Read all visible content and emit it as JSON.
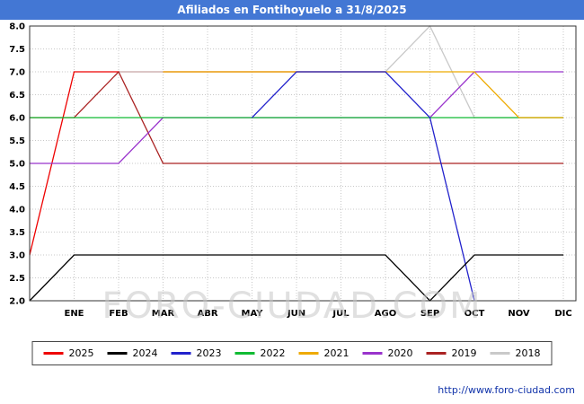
{
  "title": "Afiliados en Fontihoyuelo a 31/8/2025",
  "watermark": "FORO-CIUDAD.COM",
  "footer_url": "http://www.foro-ciudad.com",
  "titlebar_color": "#4377d4",
  "chart_data": {
    "type": "line",
    "title": "Afiliados en Fontihoyuelo a 31/8/2025",
    "x_labels": [
      "ENE",
      "FEB",
      "MAR",
      "ABR",
      "MAY",
      "JUN",
      "JUL",
      "AGO",
      "SEP",
      "OCT",
      "NOV",
      "DIC"
    ],
    "y_ticks": [
      "8.0",
      "7.5",
      "7.0",
      "6.5",
      "6.0",
      "5.5",
      "5.0",
      "4.5",
      "4.0",
      "3.5",
      "3.0",
      "2.5",
      "2.0"
    ],
    "ylim": [
      2.0,
      8.0
    ],
    "grid": true,
    "legend_position": "bottom",
    "x_positions_note": "first value of each series is plotted on the left axis, then one value per month ENE-DIC",
    "series": [
      {
        "year": "2025",
        "color": "#ee0000",
        "values": [
          3,
          7,
          7,
          7,
          7,
          7,
          7,
          7,
          7,
          null,
          null,
          null,
          null
        ]
      },
      {
        "year": "2024",
        "color": "#000000",
        "values": [
          2,
          3,
          3,
          3,
          3,
          3,
          3,
          3,
          3,
          2,
          3,
          3,
          3
        ]
      },
      {
        "year": "2023",
        "color": "#2222cc",
        "values": [
          null,
          null,
          null,
          null,
          null,
          6,
          7,
          7,
          7,
          6,
          2,
          null,
          null
        ]
      },
      {
        "year": "2022",
        "color": "#11bb33",
        "values": [
          6,
          6,
          6,
          6,
          6,
          6,
          6,
          6,
          6,
          6,
          6,
          6,
          6
        ]
      },
      {
        "year": "2021",
        "color": "#eeaa00",
        "values": [
          null,
          null,
          null,
          7,
          7,
          7,
          7,
          7,
          7,
          7,
          7,
          6,
          6
        ]
      },
      {
        "year": "2020",
        "color": "#9933cc",
        "values": [
          5,
          5,
          5,
          6,
          6,
          6,
          6,
          6,
          6,
          6,
          7,
          7,
          7
        ]
      },
      {
        "year": "2019",
        "color": "#aa2222",
        "values": [
          6,
          6,
          7,
          5,
          5,
          5,
          5,
          5,
          5,
          5,
          5,
          5,
          5
        ]
      },
      {
        "year": "2018",
        "color": "#c9c9c9",
        "values": [
          null,
          null,
          7,
          7,
          7,
          7,
          7,
          7,
          7,
          8,
          6,
          6,
          6
        ]
      }
    ],
    "draw_order": [
      "2025",
      "2018",
      "2019",
      "2020",
      "2022",
      "2021",
      "2023",
      "2024"
    ]
  }
}
